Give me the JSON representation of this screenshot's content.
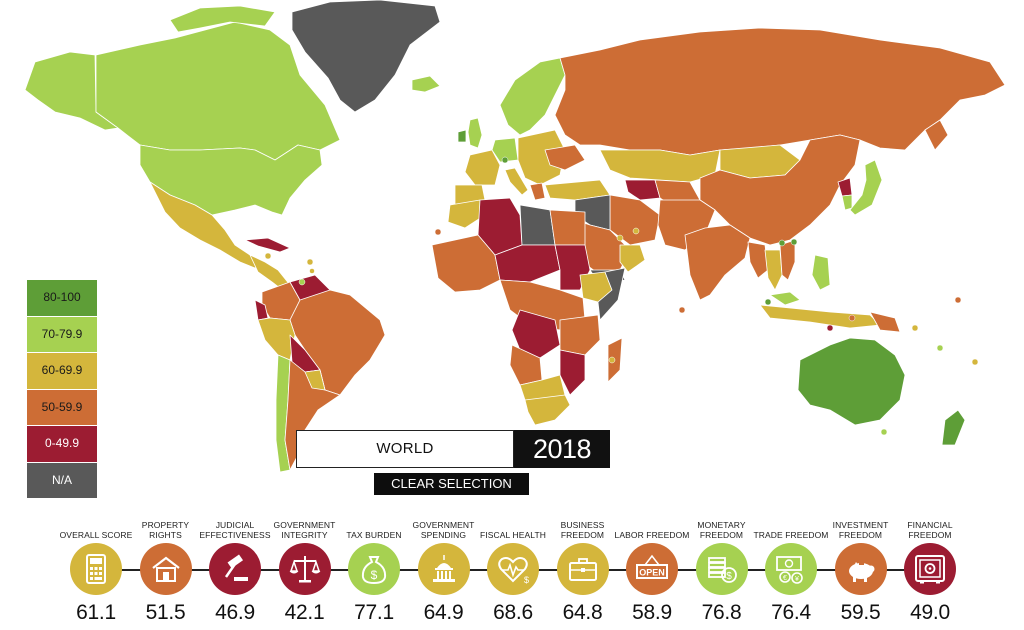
{
  "colors": {
    "c80": "#5e9e37",
    "c70": "#a6d151",
    "c60": "#d4b63c",
    "c50": "#cd6d35",
    "c0": "#9c1c32",
    "cna": "#595959"
  },
  "legend": [
    {
      "label": "80-100",
      "color": "#5e9e37",
      "text_color": "#1a1a1a"
    },
    {
      "label": "70-79.9",
      "color": "#a6d151",
      "text_color": "#1a1a1a"
    },
    {
      "label": "60-69.9",
      "color": "#d4b63c",
      "text_color": "#1a1a1a"
    },
    {
      "label": "50-59.9",
      "color": "#cd6d35",
      "text_color": "#1a1a1a"
    },
    {
      "label": "0-49.9",
      "color": "#9c1c32",
      "text_color": "#ffffff"
    },
    {
      "label": "N/A",
      "color": "#595959",
      "text_color": "#ffffff"
    }
  ],
  "selection": {
    "region": "WORLD",
    "year": "2018",
    "clear_label": "CLEAR SELECTION"
  },
  "indicators": [
    {
      "label": "OVERALL SCORE",
      "value": "61.1",
      "color": "#d4b63c",
      "icon": "calculator-icon"
    },
    {
      "label": "PROPERTY RIGHTS",
      "value": "51.5",
      "color": "#cd6d35",
      "icon": "house-icon"
    },
    {
      "label": "JUDICIAL EFFECTIVENESS",
      "value": "46.9",
      "color": "#9c1c32",
      "icon": "gavel-icon"
    },
    {
      "label": "GOVERNMENT INTEGRITY",
      "value": "42.1",
      "color": "#9c1c32",
      "icon": "scales-icon"
    },
    {
      "label": "TAX BURDEN",
      "value": "77.1",
      "color": "#a6d151",
      "icon": "money-bag-icon"
    },
    {
      "label": "GOVERNMENT SPENDING",
      "value": "64.9",
      "color": "#d4b63c",
      "icon": "capitol-icon"
    },
    {
      "label": "FISCAL HEALTH",
      "value": "68.6",
      "color": "#d4b63c",
      "icon": "heart-pulse-icon"
    },
    {
      "label": "BUSINESS FREEDOM",
      "value": "64.8",
      "color": "#d4b63c",
      "icon": "briefcase-icon"
    },
    {
      "label": "LABOR FREEDOM",
      "value": "58.9",
      "color": "#cd6d35",
      "icon": "open-sign-icon"
    },
    {
      "label": "MONETARY FREEDOM",
      "value": "76.8",
      "color": "#a6d151",
      "icon": "coins-icon"
    },
    {
      "label": "TRADE FREEDOM",
      "value": "76.4",
      "color": "#a6d151",
      "icon": "currency-exchange-icon"
    },
    {
      "label": "INVESTMENT FREEDOM",
      "value": "59.5",
      "color": "#cd6d35",
      "icon": "piggy-bank-icon"
    },
    {
      "label": "FINANCIAL FREEDOM",
      "value": "49.0",
      "color": "#9c1c32",
      "icon": "safe-icon"
    }
  ]
}
